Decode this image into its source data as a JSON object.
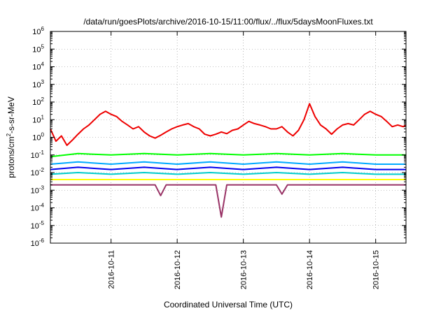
{
  "chart_data": {
    "type": "line",
    "title": "/data/run/goesPlots/archive/2016-10-15/11:00/flux/../flux/5daysMoonFluxes.txt",
    "xlabel": "Coordinated Universal Time (UTC)",
    "ylabel": {
      "pre": "protons/cm",
      "sup": "2",
      "post": "-s-sr-MeV"
    },
    "yscale": "log",
    "ylim_exponents": [
      -6,
      6
    ],
    "y_ticks": [
      {
        "base": "10",
        "exp": "-6"
      },
      {
        "base": "10",
        "exp": "-5"
      },
      {
        "base": "10",
        "exp": "-4"
      },
      {
        "base": "10",
        "exp": "-3"
      },
      {
        "base": "10",
        "exp": "-2"
      },
      {
        "base": "10",
        "exp": "-1"
      },
      {
        "base": "10",
        "exp": "0"
      },
      {
        "base": "10",
        "exp": "1"
      },
      {
        "base": "10",
        "exp": "2"
      },
      {
        "base": "10",
        "exp": "3"
      },
      {
        "base": "10",
        "exp": "4"
      },
      {
        "base": "10",
        "exp": "5"
      },
      {
        "base": "10",
        "exp": "6"
      }
    ],
    "xlim": [
      "2016-10-10 02:00",
      "2016-10-15 11:00"
    ],
    "x_ticks": [
      "2016-10-11",
      "2016-10-12",
      "2016-10-13",
      "2016-10-14",
      "2016-10-15"
    ],
    "grid": true,
    "legend": "none",
    "series": [
      {
        "color": "#ee0000",
        "points": [
          [
            "2016-10-10 02:00",
            3
          ],
          [
            "2016-10-10 04:00",
            0.6
          ],
          [
            "2016-10-10 06:00",
            1.2
          ],
          [
            "2016-10-10 08:00",
            0.35
          ],
          [
            "2016-10-10 10:00",
            0.7
          ],
          [
            "2016-10-10 12:00",
            1.5
          ],
          [
            "2016-10-10 14:00",
            3
          ],
          [
            "2016-10-10 16:00",
            5
          ],
          [
            "2016-10-10 18:00",
            10
          ],
          [
            "2016-10-10 20:00",
            20
          ],
          [
            "2016-10-10 22:00",
            30
          ],
          [
            "2016-10-11 00:00",
            20
          ],
          [
            "2016-10-11 02:00",
            15
          ],
          [
            "2016-10-11 04:00",
            8
          ],
          [
            "2016-10-11 06:00",
            5
          ],
          [
            "2016-10-11 08:00",
            3
          ],
          [
            "2016-10-11 10:00",
            4
          ],
          [
            "2016-10-11 12:00",
            2
          ],
          [
            "2016-10-11 14:00",
            1.2
          ],
          [
            "2016-10-11 16:00",
            0.9
          ],
          [
            "2016-10-11 18:00",
            1.3
          ],
          [
            "2016-10-11 20:00",
            2
          ],
          [
            "2016-10-11 22:00",
            3
          ],
          [
            "2016-10-12 00:00",
            4
          ],
          [
            "2016-10-12 02:00",
            5
          ],
          [
            "2016-10-12 04:00",
            6
          ],
          [
            "2016-10-12 06:00",
            4
          ],
          [
            "2016-10-12 08:00",
            3
          ],
          [
            "2016-10-12 10:00",
            1.5
          ],
          [
            "2016-10-12 12:00",
            1.2
          ],
          [
            "2016-10-12 14:00",
            1.5
          ],
          [
            "2016-10-12 16:00",
            2
          ],
          [
            "2016-10-12 18:00",
            1.6
          ],
          [
            "2016-10-12 20:00",
            2.5
          ],
          [
            "2016-10-12 22:00",
            3
          ],
          [
            "2016-10-13 00:00",
            5
          ],
          [
            "2016-10-13 02:00",
            8
          ],
          [
            "2016-10-13 04:00",
            6
          ],
          [
            "2016-10-13 06:00",
            5
          ],
          [
            "2016-10-13 08:00",
            4
          ],
          [
            "2016-10-13 10:00",
            3
          ],
          [
            "2016-10-13 12:00",
            3
          ],
          [
            "2016-10-13 14:00",
            4
          ],
          [
            "2016-10-13 16:00",
            2
          ],
          [
            "2016-10-13 18:00",
            1.2
          ],
          [
            "2016-10-13 20:00",
            2.5
          ],
          [
            "2016-10-13 22:00",
            10
          ],
          [
            "2016-10-14 00:00",
            80
          ],
          [
            "2016-10-14 02:00",
            15
          ],
          [
            "2016-10-14 04:00",
            5
          ],
          [
            "2016-10-14 06:00",
            3
          ],
          [
            "2016-10-14 08:00",
            1.5
          ],
          [
            "2016-10-14 10:00",
            3
          ],
          [
            "2016-10-14 12:00",
            5
          ],
          [
            "2016-10-14 14:00",
            6
          ],
          [
            "2016-10-14 16:00",
            5
          ],
          [
            "2016-10-14 18:00",
            10
          ],
          [
            "2016-10-14 20:00",
            20
          ],
          [
            "2016-10-14 22:00",
            30
          ],
          [
            "2016-10-15 00:00",
            20
          ],
          [
            "2016-10-15 02:00",
            15
          ],
          [
            "2016-10-15 04:00",
            8
          ],
          [
            "2016-10-15 06:00",
            4
          ],
          [
            "2016-10-15 08:00",
            5
          ],
          [
            "2016-10-15 10:00",
            4
          ],
          [
            "2016-10-15 11:00",
            5
          ]
        ]
      },
      {
        "color": "#00ff00",
        "points": [
          [
            "2016-10-10 02:00",
            0.08
          ],
          [
            "2016-10-10 12:00",
            0.12
          ],
          [
            "2016-10-11 00:00",
            0.1
          ],
          [
            "2016-10-11 12:00",
            0.12
          ],
          [
            "2016-10-12 00:00",
            0.1
          ],
          [
            "2016-10-12 12:00",
            0.12
          ],
          [
            "2016-10-13 00:00",
            0.1
          ],
          [
            "2016-10-13 12:00",
            0.12
          ],
          [
            "2016-10-14 00:00",
            0.1
          ],
          [
            "2016-10-14 12:00",
            0.12
          ],
          [
            "2016-10-15 00:00",
            0.1
          ],
          [
            "2016-10-15 11:00",
            0.1
          ]
        ]
      },
      {
        "color": "#00aaff",
        "points": [
          [
            "2016-10-10 02:00",
            0.03
          ],
          [
            "2016-10-10 12:00",
            0.04
          ],
          [
            "2016-10-11 00:00",
            0.03
          ],
          [
            "2016-10-11 12:00",
            0.04
          ],
          [
            "2016-10-12 00:00",
            0.03
          ],
          [
            "2016-10-12 12:00",
            0.04
          ],
          [
            "2016-10-13 00:00",
            0.03
          ],
          [
            "2016-10-13 12:00",
            0.04
          ],
          [
            "2016-10-14 00:00",
            0.03
          ],
          [
            "2016-10-14 12:00",
            0.04
          ],
          [
            "2016-10-15 00:00",
            0.03
          ],
          [
            "2016-10-15 11:00",
            0.03
          ]
        ]
      },
      {
        "color": "#0000ee",
        "points": [
          [
            "2016-10-10 02:00",
            0.015
          ],
          [
            "2016-10-10 12:00",
            0.02
          ],
          [
            "2016-10-11 00:00",
            0.015
          ],
          [
            "2016-10-11 12:00",
            0.02
          ],
          [
            "2016-10-12 00:00",
            0.015
          ],
          [
            "2016-10-12 12:00",
            0.02
          ],
          [
            "2016-10-13 00:00",
            0.015
          ],
          [
            "2016-10-13 12:00",
            0.02
          ],
          [
            "2016-10-14 00:00",
            0.015
          ],
          [
            "2016-10-14 12:00",
            0.02
          ],
          [
            "2016-10-15 00:00",
            0.015
          ],
          [
            "2016-10-15 11:00",
            0.015
          ]
        ]
      },
      {
        "color": "#00cccc",
        "points": [
          [
            "2016-10-10 02:00",
            0.008
          ],
          [
            "2016-10-10 12:00",
            0.01
          ],
          [
            "2016-10-11 00:00",
            0.008
          ],
          [
            "2016-10-11 12:00",
            0.01
          ],
          [
            "2016-10-12 00:00",
            0.008
          ],
          [
            "2016-10-12 12:00",
            0.01
          ],
          [
            "2016-10-13 00:00",
            0.008
          ],
          [
            "2016-10-13 12:00",
            0.01
          ],
          [
            "2016-10-14 00:00",
            0.008
          ],
          [
            "2016-10-14 12:00",
            0.01
          ],
          [
            "2016-10-15 00:00",
            0.008
          ],
          [
            "2016-10-15 11:00",
            0.008
          ]
        ]
      },
      {
        "color": "#ffff00",
        "points": [
          [
            "2016-10-10 02:00",
            0.004
          ],
          [
            "2016-10-11 00:00",
            0.004
          ],
          [
            "2016-10-12 00:00",
            0.004
          ],
          [
            "2016-10-13 00:00",
            0.004
          ],
          [
            "2016-10-14 00:00",
            0.004
          ],
          [
            "2016-10-15 00:00",
            0.004
          ],
          [
            "2016-10-15 11:00",
            0.004
          ]
        ]
      },
      {
        "color": "#993366",
        "points": [
          [
            "2016-10-10 02:00",
            0.002
          ],
          [
            "2016-10-11 16:00",
            0.002
          ],
          [
            "2016-10-11 18:00",
            0.0005
          ],
          [
            "2016-10-11 20:00",
            0.002
          ],
          [
            "2016-10-12 14:00",
            0.002
          ],
          [
            "2016-10-12 16:00",
            3e-05
          ],
          [
            "2016-10-12 18:00",
            0.002
          ],
          [
            "2016-10-13 12:00",
            0.002
          ],
          [
            "2016-10-13 14:00",
            0.0006
          ],
          [
            "2016-10-13 16:00",
            0.002
          ],
          [
            "2016-10-15 11:00",
            0.002
          ]
        ]
      }
    ]
  }
}
